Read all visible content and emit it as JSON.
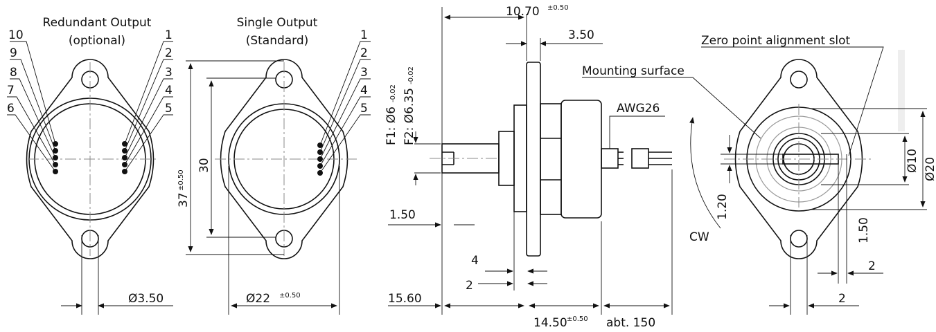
{
  "left_view": {
    "title": "Redundant Output",
    "subtitle": "(optional)",
    "pins_left": [
      "10",
      "9",
      "8",
      "7",
      "6"
    ],
    "pins_right": [
      "1",
      "2",
      "3",
      "4",
      "5"
    ],
    "hole_diameter": "Ø3.50"
  },
  "middle_view": {
    "title": "Single Output",
    "subtitle": "(Standard)",
    "pins": [
      "1",
      "2",
      "3",
      "4",
      "5"
    ],
    "height": "37",
    "height_tolerance": "±0.50",
    "hole_spacing": "30",
    "diameter": "Ø22",
    "diameter_tolerance": "±0.50"
  },
  "side_view": {
    "length": "10.70",
    "length_tolerance": "±0.50",
    "flange_thickness": "3.50",
    "shaft_f1": "F1: Ø6",
    "shaft_f1_tolerance": "-0.02",
    "shaft_f2": "F2: Ø6.35",
    "shaft_f2_tolerance": "-0.02",
    "shaft_step": "1.50",
    "collar": "4",
    "collar_gap": "2",
    "shaft_length": "15.60",
    "body_length": "14.50",
    "body_length_tolerance": "±0.50",
    "wire_length": "abt. 150",
    "wire_gauge": "AWG26",
    "rotation": "CW"
  },
  "right_view": {
    "mounting_label": "Mounting surface",
    "slot_label": "Zero point alignment slot",
    "slot_width": "1.20",
    "slot_offset": "1.50",
    "inner_diameter": "Ø10",
    "outer_diameter": "Ø20",
    "slot_depth": "2",
    "hole_offset": "2"
  }
}
